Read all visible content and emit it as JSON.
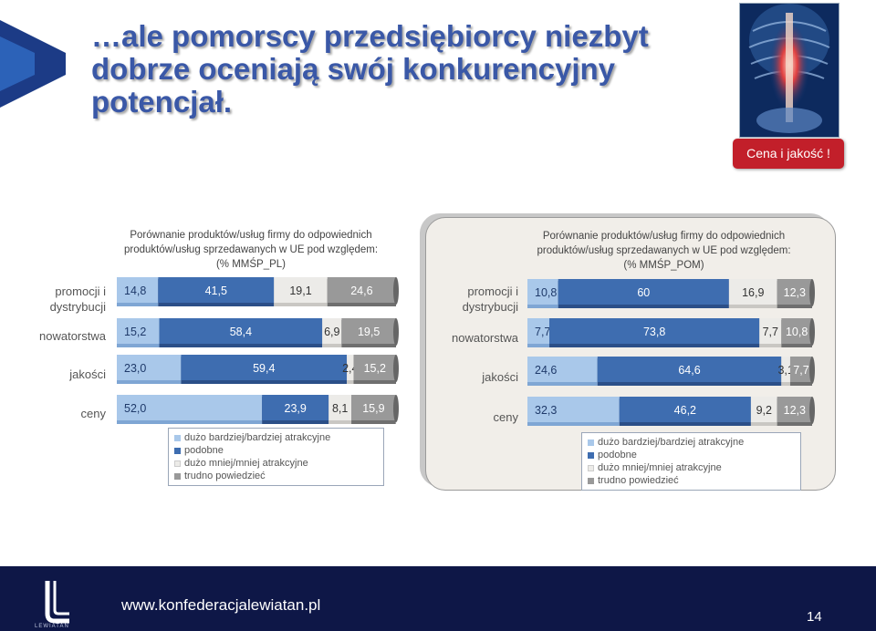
{
  "title": "…ale pomorscy przedsiębiorcy niezbyt dobrze oceniają swój konkurencyjny potencjał.",
  "badge": "Cena i jakość !",
  "footer": {
    "url": "www.konfederacjalewiatan.pl",
    "page_number": "14",
    "logo_text": "LEWIATAN"
  },
  "colors": {
    "s1": "#a9c8ea",
    "s2": "#3e6db0",
    "s3": "#ecebe8",
    "s4": "#999999",
    "title": "#3a58a7",
    "badge": "#c21f2a",
    "footer": "#0e1747"
  },
  "legend": [
    "dużo bardziej/bardziej atrakcyjne",
    "podobne",
    "dużo mniej/mniej atrakcyjne",
    "trudno powiedzieć"
  ],
  "chart_data": [
    {
      "type": "bar",
      "stacked": true,
      "orientation": "horizontal",
      "title_lines": [
        "Porównanie produktów/usług firmy do odpowiednich",
        "produktów/usług sprzedawanych w UE pod względem:",
        "(% MMŚP_PL)"
      ],
      "categories": [
        "promocji i dystrybucji",
        "nowatorstwa",
        "jakości",
        "ceny"
      ],
      "category_lines": [
        [
          "promocji i",
          "dystrybucji"
        ],
        [
          "nowatorstwa"
        ],
        [
          "jakości"
        ],
        [
          "ceny"
        ]
      ],
      "series": [
        {
          "name": "dużo bardziej/bardziej atrakcyjne",
          "values": [
            14.8,
            15.2,
            23.0,
            52.0
          ],
          "labels": [
            "14,8",
            "15,2",
            "23,0",
            "52,0"
          ]
        },
        {
          "name": "podobne",
          "values": [
            41.5,
            58.4,
            59.4,
            23.9
          ],
          "labels": [
            "41,5",
            "58,4",
            "59,4",
            "23,9"
          ]
        },
        {
          "name": "dużo mniej/mniej atrakcyjne",
          "values": [
            19.1,
            6.9,
            2.4,
            8.1
          ],
          "labels": [
            "19,1",
            "6,9",
            "2,4",
            "8,1"
          ]
        },
        {
          "name": "trudno powiedzieć",
          "values": [
            24.6,
            19.5,
            15.2,
            15.9
          ],
          "labels": [
            "24,6",
            "19,5",
            "15,2",
            "15,9"
          ]
        }
      ],
      "xlim": [
        0,
        100
      ]
    },
    {
      "type": "bar",
      "stacked": true,
      "orientation": "horizontal",
      "title_lines": [
        "Porównanie produktów/usług firmy do odpowiednich",
        "produktów/usług sprzedawanych w UE pod względem:",
        "(% MMŚP_POM)"
      ],
      "categories": [
        "promocji i dystrybucji",
        "nowatorstwa",
        "jakości",
        "ceny"
      ],
      "category_lines": [
        [
          "promocji i",
          "dystrybucji"
        ],
        [
          "nowatorstwa"
        ],
        [
          "jakości"
        ],
        [
          "ceny"
        ]
      ],
      "series": [
        {
          "name": "dużo bardziej/bardziej atrakcyjne",
          "values": [
            10.8,
            7.7,
            24.6,
            32.3
          ],
          "labels": [
            "10,8",
            "7,7",
            "24,6",
            "32,3"
          ]
        },
        {
          "name": "podobne",
          "values": [
            60.0,
            73.8,
            64.6,
            46.2
          ],
          "labels": [
            "60",
            "73,8",
            "64,6",
            "46,2"
          ]
        },
        {
          "name": "dużo mniej/mniej atrakcyjne",
          "values": [
            16.9,
            7.7,
            3.1,
            9.2
          ],
          "labels": [
            "16,9",
            "7,7",
            "3,1",
            "9,2"
          ]
        },
        {
          "name": "trudno powiedzieć",
          "values": [
            12.3,
            10.8,
            7.7,
            12.3
          ],
          "labels": [
            "12,3",
            "10,8",
            "7,7",
            "12,3"
          ]
        }
      ],
      "xlim": [
        0,
        100
      ]
    }
  ]
}
